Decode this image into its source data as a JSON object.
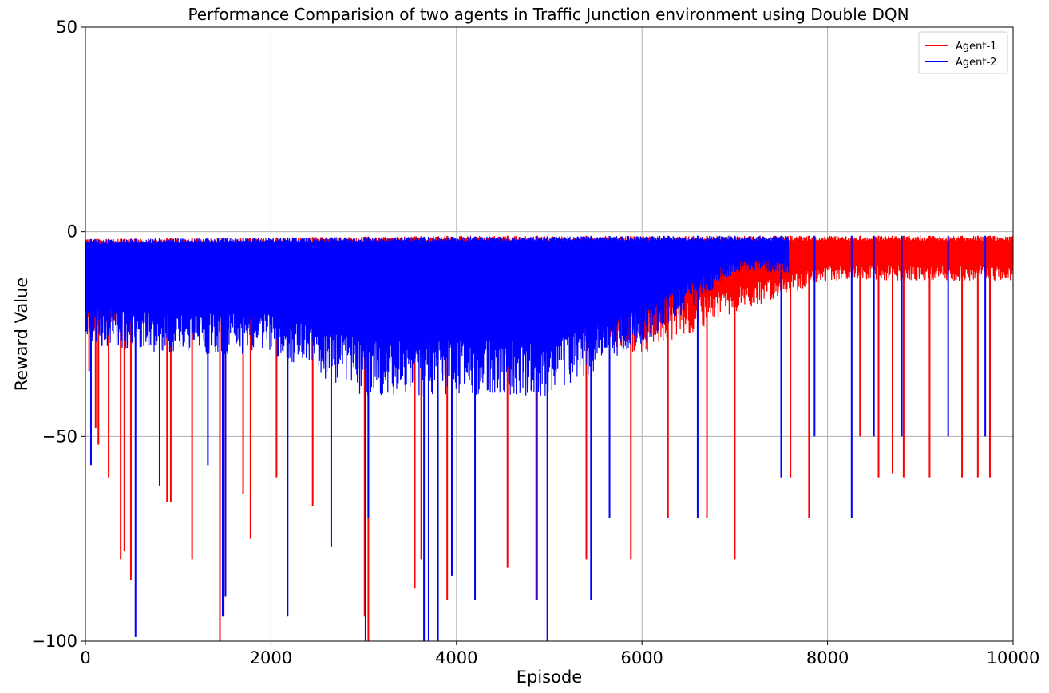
{
  "chart_data": {
    "type": "line",
    "title": "Performance Comparision of two agents in Traffic Junction environment using Double DQN",
    "xlabel": "Episode",
    "ylabel": "Reward Value",
    "xlim": [
      0,
      10000
    ],
    "ylim": [
      -100,
      50
    ],
    "x_ticks": [
      0,
      2000,
      4000,
      6000,
      8000,
      10000
    ],
    "x_tick_labels": [
      "0",
      "2000",
      "4000",
      "6000",
      "8000",
      "10000"
    ],
    "y_ticks": [
      -100,
      -50,
      0,
      50
    ],
    "y_tick_labels": [
      "−100",
      "−50",
      "0",
      "50"
    ],
    "grid": true,
    "legend_position": "top-right",
    "episodes": 10000,
    "series": [
      {
        "name": "Agent-1",
        "color": "#ff0000",
        "band_upper": [
          -1.8,
          -1.6,
          -1.4,
          -1.2,
          -1.0,
          -1.0,
          -1.0,
          -1.0,
          -1.0,
          -1.0,
          -1.0
        ],
        "band_lower": [
          -25,
          -20,
          -20,
          -22,
          -25,
          -25,
          -30,
          -20,
          -12,
          -12,
          -12
        ],
        "spikes": [
          {
            "x": 40,
            "y": -34
          },
          {
            "x": 110,
            "y": -48
          },
          {
            "x": 140,
            "y": -52
          },
          {
            "x": 250,
            "y": -60
          },
          {
            "x": 380,
            "y": -80
          },
          {
            "x": 420,
            "y": -78
          },
          {
            "x": 490,
            "y": -85
          },
          {
            "x": 880,
            "y": -66
          },
          {
            "x": 920,
            "y": -66
          },
          {
            "x": 1150,
            "y": -80
          },
          {
            "x": 1450,
            "y": -100
          },
          {
            "x": 1490,
            "y": -94
          },
          {
            "x": 1700,
            "y": -64
          },
          {
            "x": 1780,
            "y": -75
          },
          {
            "x": 2060,
            "y": -60
          },
          {
            "x": 2450,
            "y": -67
          },
          {
            "x": 3010,
            "y": -94
          },
          {
            "x": 3050,
            "y": -100
          },
          {
            "x": 3550,
            "y": -87
          },
          {
            "x": 3620,
            "y": -80
          },
          {
            "x": 3900,
            "y": -90
          },
          {
            "x": 4550,
            "y": -82
          },
          {
            "x": 4870,
            "y": -90
          },
          {
            "x": 5400,
            "y": -80
          },
          {
            "x": 5880,
            "y": -80
          },
          {
            "x": 6280,
            "y": -70
          },
          {
            "x": 6700,
            "y": -70
          },
          {
            "x": 7000,
            "y": -80
          },
          {
            "x": 7600,
            "y": -60
          },
          {
            "x": 7800,
            "y": -70
          },
          {
            "x": 8350,
            "y": -50
          },
          {
            "x": 8550,
            "y": -60
          },
          {
            "x": 8700,
            "y": -59
          },
          {
            "x": 8820,
            "y": -60
          },
          {
            "x": 9100,
            "y": -60
          },
          {
            "x": 9450,
            "y": -60
          },
          {
            "x": 9620,
            "y": -60
          },
          {
            "x": 9750,
            "y": -60
          }
        ]
      },
      {
        "name": "Agent-2",
        "color": "#0000ff",
        "band_upper": [
          -1.8,
          -1.6,
          -1.4,
          -1.3,
          -1.2,
          -1.1,
          -1.0,
          -1.0,
          -1.0,
          -1.0,
          -1.0
        ],
        "band_lower": [
          -28,
          -30,
          -30,
          -40,
          -40,
          -40,
          -28,
          -10,
          -10,
          -10,
          -10
        ],
        "band_end_x": 7580,
        "spikes": [
          {
            "x": 60,
            "y": -57
          },
          {
            "x": 540,
            "y": -99
          },
          {
            "x": 800,
            "y": -62
          },
          {
            "x": 1320,
            "y": -57
          },
          {
            "x": 1480,
            "y": -94
          },
          {
            "x": 1510,
            "y": -89
          },
          {
            "x": 2180,
            "y": -94
          },
          {
            "x": 2650,
            "y": -77
          },
          {
            "x": 3020,
            "y": -100
          },
          {
            "x": 3050,
            "y": -70
          },
          {
            "x": 3650,
            "y": -100
          },
          {
            "x": 3700,
            "y": -100
          },
          {
            "x": 3800,
            "y": -100
          },
          {
            "x": 3950,
            "y": -84
          },
          {
            "x": 4200,
            "y": -90
          },
          {
            "x": 4860,
            "y": -90
          },
          {
            "x": 4980,
            "y": -100
          },
          {
            "x": 5450,
            "y": -90
          },
          {
            "x": 5650,
            "y": -70
          },
          {
            "x": 6600,
            "y": -70
          },
          {
            "x": 7500,
            "y": -60
          },
          {
            "x": 7860,
            "y": -50
          },
          {
            "x": 8260,
            "y": -70
          },
          {
            "x": 8500,
            "y": -50
          },
          {
            "x": 8800,
            "y": -50
          },
          {
            "x": 9300,
            "y": -50
          },
          {
            "x": 9700,
            "y": -50
          }
        ]
      }
    ]
  }
}
